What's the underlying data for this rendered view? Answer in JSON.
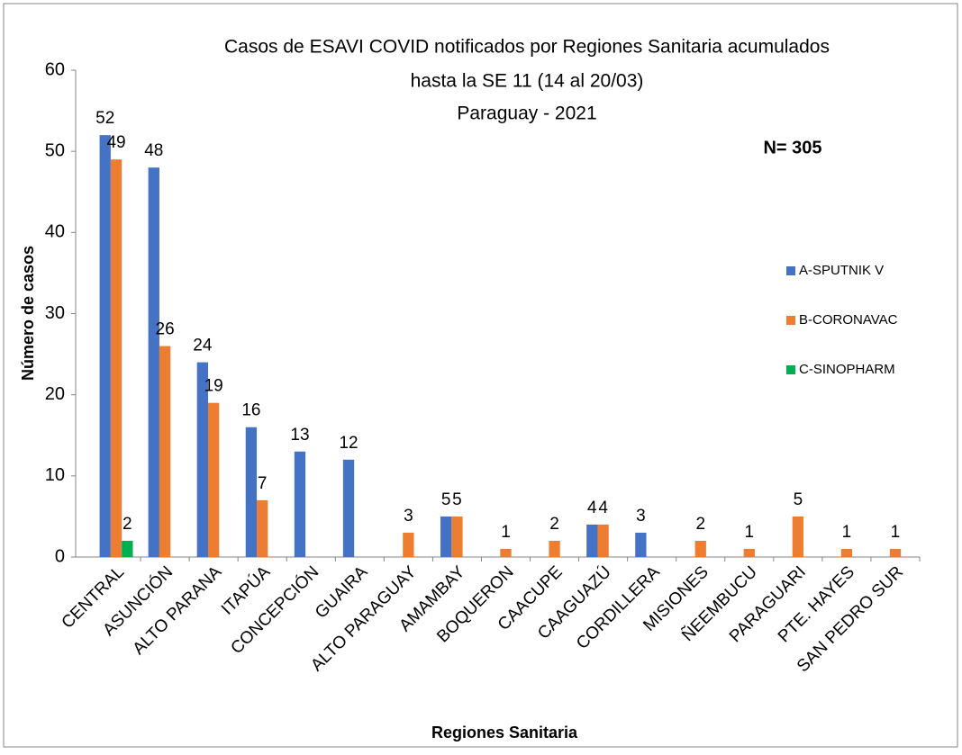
{
  "chart_data": {
    "type": "bar",
    "title": [
      "Casos de ESAVI COVID notificados por Regiones Sanitaria acumulados",
      "hasta la SE 11 (14 al 20/03)",
      "Paraguay - 2021"
    ],
    "annotation": "N= 305",
    "x_label": "Regiones Sanitaria",
    "y_label": "Número de casos",
    "categories": [
      "CENTRAL",
      "ASUNCIÓN",
      "ALTO PARANA",
      "ITAPÚA",
      "CONCEPCIÓN",
      "GUAIRA",
      "ALTO PARAGUAY",
      "AMAMBAY",
      "BOQUERON",
      "CAACUPE",
      "CAAGUAZÚ",
      "CORDILLERA",
      "MISIONES",
      "ÑEEMBUCU",
      "PARAGUARI",
      "PTE. HAYES",
      "SAN PEDRO SUR"
    ],
    "series": [
      {
        "name": "A-SPUTNIK V",
        "color": "#4472c4",
        "values": [
          52,
          48,
          24,
          16,
          13,
          12,
          null,
          5,
          null,
          null,
          4,
          3,
          null,
          null,
          null,
          null,
          null
        ]
      },
      {
        "name": "B-CORONAVAC",
        "color": "#ed7d31",
        "values": [
          49,
          26,
          19,
          7,
          null,
          null,
          3,
          5,
          1,
          2,
          4,
          null,
          2,
          1,
          5,
          1,
          1
        ]
      },
      {
        "name": "C-SINOPHARM",
        "color": "#00b050",
        "values": [
          2,
          null,
          null,
          null,
          null,
          null,
          null,
          null,
          null,
          null,
          null,
          null,
          null,
          null,
          null,
          null,
          null
        ]
      }
    ],
    "ylim": [
      0,
      60
    ],
    "yticks": [
      0,
      10,
      20,
      30,
      40,
      50,
      60
    ],
    "grid": false,
    "legend": "right"
  }
}
